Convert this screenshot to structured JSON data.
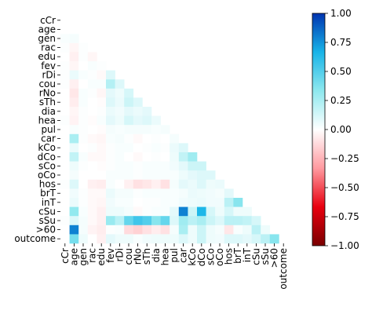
{
  "chart_data": {
    "type": "heatmap",
    "title": "",
    "variant": "lower-triangle correlation matrix",
    "labels": [
      "cCr",
      "age",
      "gen",
      "rac",
      "edu",
      "fev",
      "rDi",
      "cou",
      "rNo",
      "sTh",
      "dia",
      "hea",
      "pul",
      "car",
      "kCo",
      "dCo",
      "sCo",
      "oCo",
      "hos",
      "brT",
      "inT",
      "cSu",
      "sSu",
      ">60",
      "outcome"
    ],
    "colorbar": {
      "range": [
        -1.0,
        1.0
      ],
      "ticks": [
        -1.0,
        -0.75,
        -0.5,
        -0.25,
        0.0,
        0.25,
        0.5,
        0.75,
        1.0
      ],
      "tick_labels": [
        "−1.00",
        "−0.75",
        "−0.50",
        "−0.25",
        "0.00",
        "0.25",
        "0.50",
        "0.75",
        "1.00"
      ],
      "colors": [
        "#7a0000",
        "#e8000f",
        "#ff9aa0",
        "#ffffff",
        "#8ee8ee",
        "#18b4e8",
        "#0034b0"
      ]
    },
    "values": [
      [],
      [
        0.0
      ],
      [
        0.02,
        0.03
      ],
      [
        0.01,
        -0.03,
        0.01
      ],
      [
        0.0,
        -0.05,
        0.01,
        -0.03
      ],
      [
        0.01,
        -0.03,
        0.0,
        0.02,
        0.01
      ],
      [
        0.01,
        0.06,
        0.02,
        0.01,
        -0.02,
        0.1
      ],
      [
        0.01,
        -0.05,
        0.0,
        0.02,
        0.02,
        0.22,
        0.1
      ],
      [
        0.0,
        -0.08,
        0.02,
        0.01,
        -0.03,
        0.08,
        0.05,
        0.12
      ],
      [
        0.0,
        -0.06,
        0.02,
        0.0,
        -0.01,
        0.1,
        0.06,
        0.15,
        0.1
      ],
      [
        0.0,
        -0.03,
        0.01,
        0.0,
        0.01,
        0.06,
        0.04,
        0.08,
        0.06,
        0.08
      ],
      [
        0.01,
        -0.04,
        0.01,
        -0.01,
        0.02,
        0.08,
        0.05,
        0.12,
        0.08,
        0.1,
        0.06
      ],
      [
        0.0,
        0.02,
        0.01,
        0.0,
        -0.01,
        0.03,
        0.02,
        0.03,
        0.03,
        0.03,
        0.02,
        0.03
      ],
      [
        0.0,
        0.25,
        0.01,
        -0.02,
        -0.03,
        0.02,
        0.03,
        0.01,
        -0.02,
        0.0,
        0.01,
        0.0,
        0.03
      ],
      [
        0.0,
        0.06,
        0.0,
        0.01,
        -0.02,
        0.01,
        0.02,
        0.02,
        0.0,
        0.01,
        0.02,
        0.01,
        0.06,
        0.1
      ],
      [
        0.0,
        0.18,
        0.02,
        -0.02,
        -0.02,
        0.01,
        0.02,
        0.0,
        -0.02,
        0.0,
        0.01,
        0.0,
        0.05,
        0.18,
        0.28
      ],
      [
        0.0,
        0.05,
        0.01,
        0.0,
        -0.01,
        0.01,
        0.02,
        0.02,
        0.01,
        0.02,
        0.02,
        0.02,
        0.04,
        0.08,
        0.15,
        0.15
      ],
      [
        0.0,
        0.03,
        0.0,
        0.0,
        0.0,
        0.02,
        0.02,
        0.02,
        0.01,
        0.02,
        0.02,
        0.02,
        0.02,
        0.05,
        0.08,
        0.1,
        0.1
      ],
      [
        0.01,
        0.1,
        0.0,
        -0.05,
        -0.06,
        0.02,
        0.0,
        -0.05,
        -0.1,
        -0.08,
        -0.05,
        -0.1,
        0.03,
        0.08,
        0.06,
        0.1,
        0.05,
        0.06
      ],
      [
        0.0,
        0.04,
        0.01,
        -0.02,
        -0.02,
        0.06,
        0.03,
        0.03,
        0.01,
        0.02,
        0.02,
        0.02,
        0.02,
        0.03,
        0.06,
        0.05,
        0.04,
        0.03,
        0.08
      ],
      [
        0.0,
        0.06,
        0.01,
        -0.02,
        -0.03,
        0.04,
        0.02,
        0.02,
        0.0,
        0.01,
        0.01,
        0.02,
        0.02,
        0.04,
        0.05,
        0.06,
        0.04,
        0.04,
        0.2,
        0.35
      ],
      [
        0.0,
        0.32,
        0.02,
        -0.02,
        -0.05,
        0.05,
        0.05,
        0.03,
        -0.02,
        0.01,
        0.02,
        0.02,
        0.08,
        0.8,
        0.15,
        0.65,
        0.12,
        0.05,
        0.12,
        0.05,
        0.05
      ],
      [
        0.01,
        0.1,
        0.03,
        -0.02,
        -0.05,
        0.3,
        0.2,
        0.45,
        0.55,
        0.5,
        0.35,
        0.45,
        0.1,
        0.28,
        0.2,
        0.25,
        0.15,
        0.1,
        0.2,
        0.2,
        0.18,
        0.12
      ],
      [
        0.0,
        0.8,
        0.03,
        -0.04,
        -0.06,
        0.01,
        0.02,
        -0.12,
        -0.15,
        -0.1,
        -0.06,
        -0.1,
        0.03,
        0.25,
        0.05,
        0.15,
        0.05,
        0.03,
        -0.08,
        0.02,
        0.05,
        0.2,
        0.05
      ],
      [
        0.0,
        0.4,
        0.05,
        0.0,
        -0.05,
        0.08,
        0.05,
        0.05,
        0.02,
        0.04,
        0.05,
        0.05,
        0.05,
        0.1,
        0.05,
        0.15,
        0.05,
        0.04,
        0.1,
        0.1,
        0.08,
        0.12,
        0.2,
        0.35
      ]
    ]
  }
}
